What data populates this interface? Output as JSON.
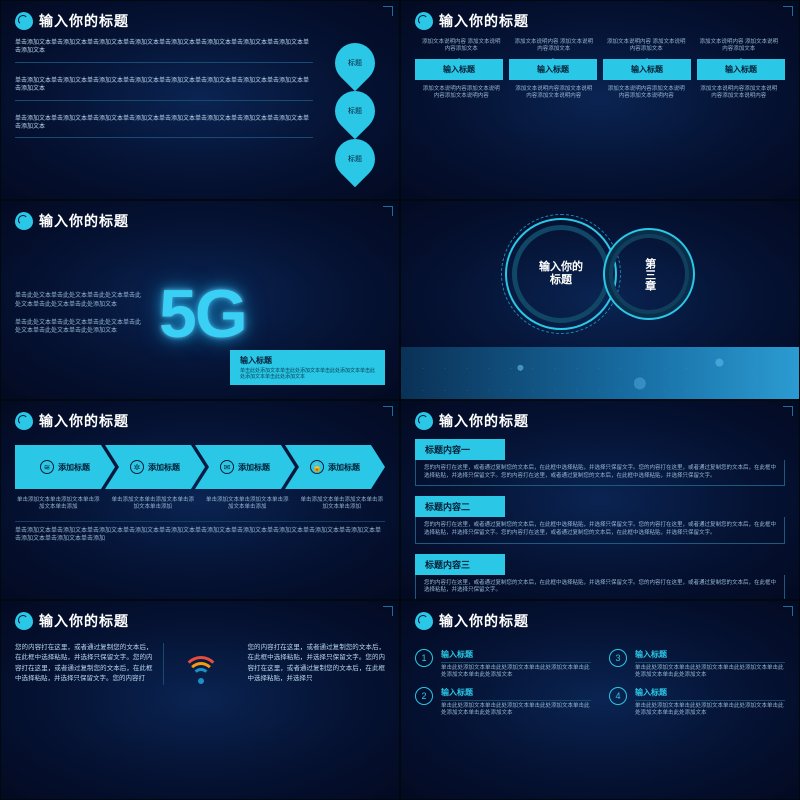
{
  "common": {
    "title": "输入你的标题",
    "accent": "#2bc7e6",
    "bg_inner": "#0a2452",
    "bg_outer": "#030a22",
    "text_muted": "#96b8d4",
    "text_light": "#b9d7ee"
  },
  "slide1": {
    "paragraphs": [
      "单击添加文本单击添加文本单击添加文本单击添加文本单击添加文本单击添加文本单击添加文本单击添加文本单击添加文本",
      "单击添加文本单击添加文本单击添加文本单击添加文本单击添加文本单击添加文本单击添加文本单击添加文本单击添加文本",
      "单击添加文本单击添加文本单击添加文本单击添加文本单击添加文本单击添加文本单击添加文本单击添加文本单击添加文本"
    ],
    "bullets": [
      "标题",
      "标题",
      "标题"
    ]
  },
  "slide2": {
    "top_desc": "添加文本说明内容\n添加文本说明内容添加文本",
    "labels": [
      "输入标题",
      "输入标题",
      "输入标题",
      "输入标题"
    ],
    "bottom_desc": "添加文本说明内容添加文本说明内容添加文本说明内容"
  },
  "slide3": {
    "left_paras": [
      "单击此处文本单击此处文本单击此处文本单击此处文本单击此处文本单击此处添加文本",
      "单击此处文本单击此处文本单击此处文本单击此处文本单击此处文本单击此处添加文本"
    ],
    "logo": "5G",
    "box_title": "输入标题",
    "box_body": "单击此处添加文本单击此处添加文本单击此处添加文本单击此处添加文本单击此处添加文本"
  },
  "slide4": {
    "big_ring": "输入你的标题",
    "small_ring": "第三章"
  },
  "slide5": {
    "steps": [
      {
        "icon": "≋",
        "label": "添加标题"
      },
      {
        "icon": "✲",
        "label": "添加标题"
      },
      {
        "icon": "✉",
        "label": "添加标题"
      },
      {
        "icon": "🔒",
        "label": "添加标题"
      }
    ],
    "col_desc": "单击添加文本单击添加文本单击添加文本单击添加",
    "footer": "单击添加文本单击添加文本单击添加文本单击添加文本单击添加文本单击添加文本单击添加文本单击添加文本单击添加文本单击添加文本单击添加文本单击添加文本单击添加"
  },
  "slide6": {
    "items": [
      {
        "title": "标题内容一",
        "desc": "您的内容打在这里，或者通过复制您的文本后，在此框中选择粘贴，并选择只保留文字。您的内容打在这里，或者通过复制您的文本后，在此框中选择粘贴，并选择只保留文字。您的内容打在这里，或者通过复制您的文本后，在此框中选择粘贴，并选择只保留文字。"
      },
      {
        "title": "标题内容二",
        "desc": "您的内容打在这里，或者通过复制您的文本后，在此框中选择粘贴，并选择只保留文字。您的内容打在这里，或者通过复制您的文本后，在此框中选择粘贴，并选择只保留文字。您的内容打在这里，或者通过复制您的文本后，在此框中选择粘贴，并选择只保留文字。"
      },
      {
        "title": "标题内容三",
        "desc": "您的内容打在这里，或者通过复制您的文本后，在此框中选择粘贴，并选择只保留文字。您的内容打在这里，或者通过复制您的文本后，在此框中选择粘贴，并选择只保留文字。"
      }
    ]
  },
  "slide7": {
    "left": "您的内容打在这里，或者通过复制您的文本后，在此框中选择粘贴，并选择只保留文字。您的内容打在这里，或者通过复制您的文本后，在此框中选择粘贴，并选择只保留文字。您的内容打",
    "right": "您的内容打在这里，或者通过复制您的文本后，在此框中选择粘贴，并选择只保留文字。您的内容打在这里，或者通过复制您的文本后，在此框中选择粘贴，并选择只"
  },
  "slide8": {
    "items": [
      {
        "n": "1",
        "t": "输入标题",
        "d": "单击此处添加文本单击此处添加文本单击此处添加文本单击此处添加文本单击此处添加文本"
      },
      {
        "n": "2",
        "t": "输入标题",
        "d": "单击此处添加文本单击此处添加文本单击此处添加文本单击此处添加文本单击此处添加文本"
      },
      {
        "n": "3",
        "t": "输入标题",
        "d": "单击此处添加文本单击此处添加文本单击此处添加文本单击此处添加文本单击此处添加文本"
      },
      {
        "n": "4",
        "t": "输入标题",
        "d": "单击此处添加文本单击此处添加文本单击此处添加文本单击此处添加文本单击此处添加文本"
      }
    ]
  }
}
